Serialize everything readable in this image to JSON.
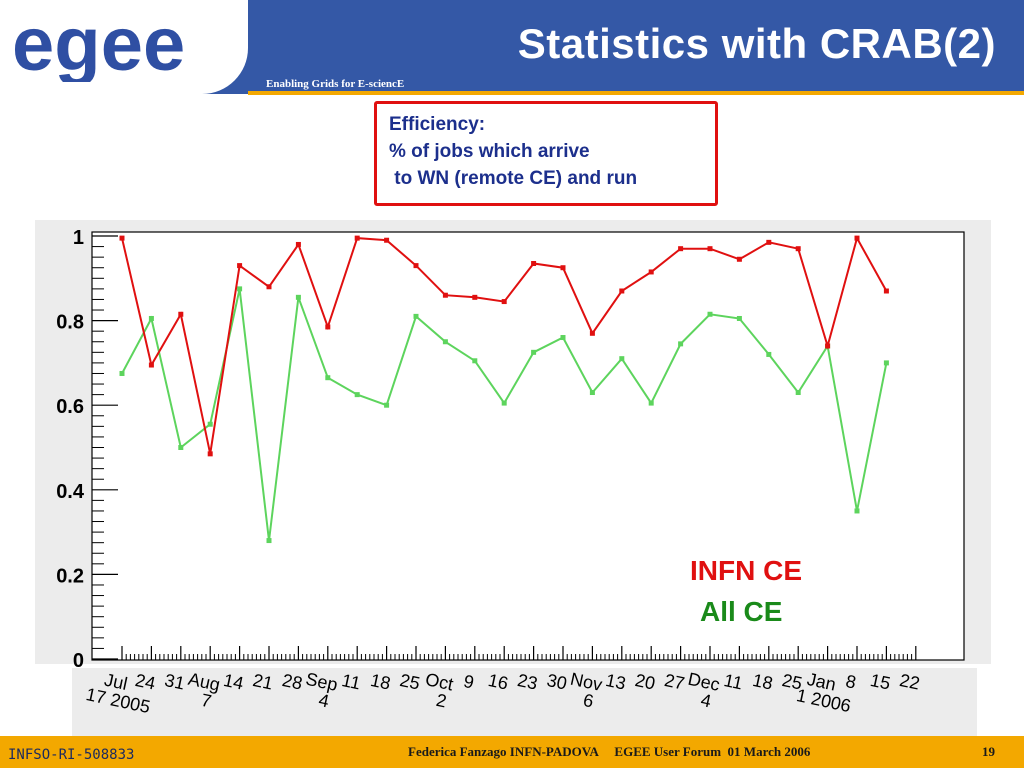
{
  "header": {
    "logo_text": "egee",
    "title": "Statistics with CRAB(2)",
    "tagline": "Enabling Grids for E-sciencE"
  },
  "note": {
    "line1": "Efficiency:",
    "line2": "% of jobs which arrive",
    "line3": " to WN (remote CE) and run"
  },
  "chart_data": {
    "type": "line",
    "ylim": [
      0,
      1
    ],
    "y_ticks": [
      "0",
      "0.2",
      "0.4",
      "0.6",
      "0.8",
      "1"
    ],
    "x_ticks": [
      {
        "line1": "Jul",
        "line2": "17 2005"
      },
      {
        "line1": "24",
        "line2": ""
      },
      {
        "line1": "31",
        "line2": ""
      },
      {
        "line1": "Aug",
        "line2": "7"
      },
      {
        "line1": "14",
        "line2": ""
      },
      {
        "line1": "21",
        "line2": ""
      },
      {
        "line1": "28",
        "line2": ""
      },
      {
        "line1": "Sep",
        "line2": "4"
      },
      {
        "line1": "11",
        "line2": ""
      },
      {
        "line1": "18",
        "line2": ""
      },
      {
        "line1": "25",
        "line2": ""
      },
      {
        "line1": "Oct",
        "line2": "2"
      },
      {
        "line1": "9",
        "line2": ""
      },
      {
        "line1": "16",
        "line2": ""
      },
      {
        "line1": "23",
        "line2": ""
      },
      {
        "line1": "30",
        "line2": ""
      },
      {
        "line1": "Nov",
        "line2": "6"
      },
      {
        "line1": "13",
        "line2": ""
      },
      {
        "line1": "20",
        "line2": ""
      },
      {
        "line1": "27",
        "line2": ""
      },
      {
        "line1": "Dec",
        "line2": "4"
      },
      {
        "line1": "11",
        "line2": ""
      },
      {
        "line1": "18",
        "line2": ""
      },
      {
        "line1": "25",
        "line2": ""
      },
      {
        "line1": "Jan",
        "line2": "1 2006"
      },
      {
        "line1": "8",
        "line2": ""
      },
      {
        "line1": "15",
        "line2": ""
      },
      {
        "line1": "22",
        "line2": ""
      }
    ],
    "series": [
      {
        "name": "INFN CE",
        "color": "#e01010",
        "values": [
          0.995,
          0.695,
          0.815,
          0.485,
          0.93,
          0.88,
          0.98,
          0.785,
          0.995,
          0.99,
          0.93,
          0.86,
          0.855,
          0.845,
          0.935,
          0.925,
          0.77,
          0.87,
          0.915,
          0.97,
          0.97,
          0.945,
          0.985,
          0.97,
          0.74,
          0.995,
          0.87
        ]
      },
      {
        "name": "All CE",
        "color": "#5dd45d",
        "values": [
          0.675,
          0.805,
          0.5,
          0.555,
          0.875,
          0.28,
          0.855,
          0.665,
          0.625,
          0.6,
          0.81,
          0.75,
          0.705,
          0.605,
          0.725,
          0.76,
          0.63,
          0.71,
          0.605,
          0.745,
          0.815,
          0.805,
          0.72,
          0.63,
          0.74,
          0.35,
          0.7
        ]
      }
    ],
    "legend": [
      {
        "label": "INFN CE",
        "color": "#e01010"
      },
      {
        "label": "All CE",
        "color": "#1a8a1a"
      }
    ],
    "legend_position": "bottom-right",
    "grid": false
  },
  "footer": {
    "text": "Federica Fanzago INFN-PADOVA     EGEE User Forum  01 March 2006",
    "page": "19",
    "id": "INFSO-RI-508833"
  }
}
